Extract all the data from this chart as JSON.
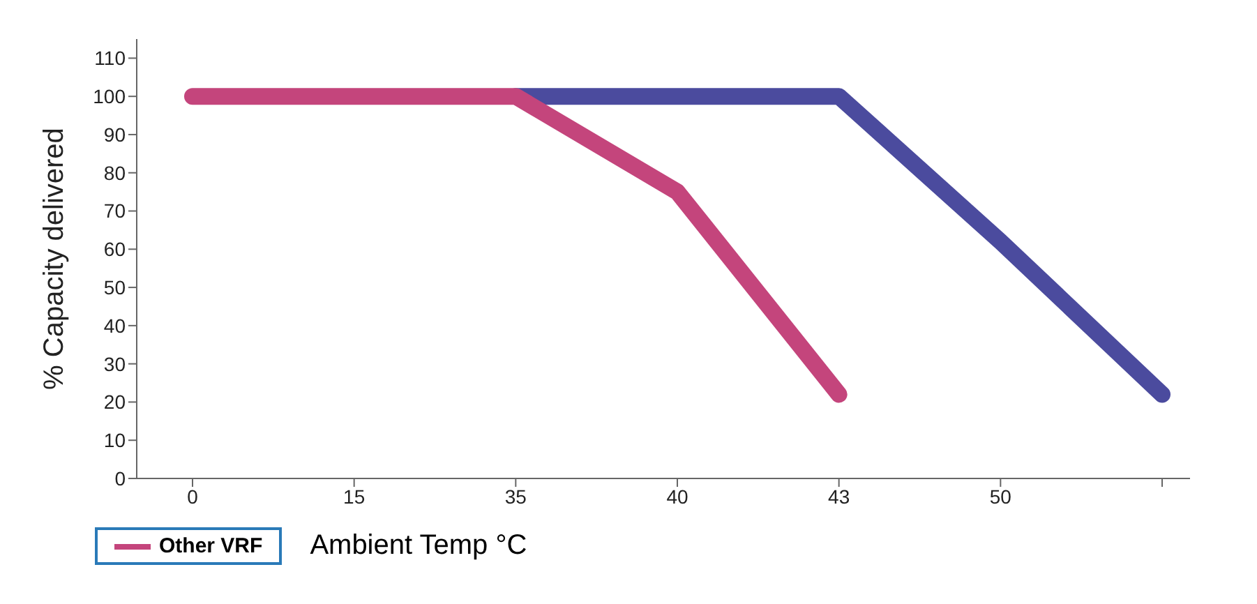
{
  "chart_data": {
    "type": "line",
    "xlabel": "Ambient Temp °C",
    "ylabel": "% Capacity delivered",
    "categories": [
      "0",
      "15",
      "35",
      "40",
      "43",
      "50",
      null
    ],
    "series": [
      {
        "color": "#4b4b9e",
        "values": [
          null,
          null,
          100,
          100,
          100,
          62,
          22
        ]
      },
      {
        "name": "Other VRF",
        "color": "#c4457c",
        "values": [
          100,
          100,
          100,
          75,
          22,
          null,
          null
        ]
      }
    ],
    "ylim": [
      0,
      115
    ],
    "yticks": [
      0,
      10,
      20,
      30,
      40,
      50,
      60,
      70,
      80,
      90,
      100,
      110
    ],
    "grid": false,
    "legend": "bottom left",
    "marker": "none",
    "line_style": "solid"
  }
}
